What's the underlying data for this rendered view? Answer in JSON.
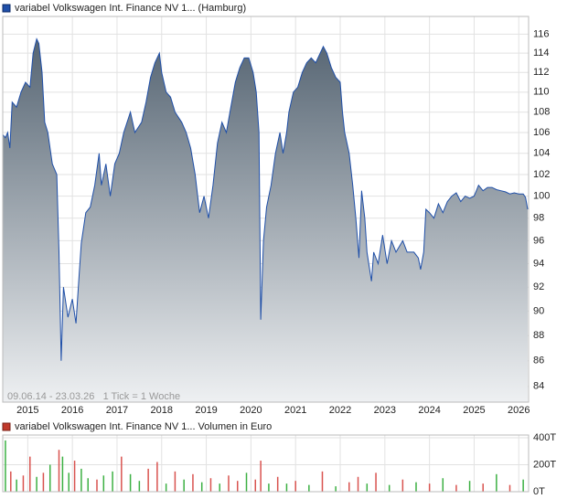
{
  "chart_data": [
    {
      "type": "area",
      "log_scale": true,
      "grid": true,
      "annotation": "09.06.14 - 23.03.26   1 Tick = 1 Woche",
      "xlim": [
        2014.44,
        2026.22
      ],
      "xticks": [
        2015,
        2016,
        2017,
        2018,
        2019,
        2020,
        2021,
        2022,
        2023,
        2024,
        2025,
        2026
      ],
      "ylim": [
        82.8,
        117.9
      ],
      "yticks": [
        84,
        86,
        88,
        90,
        92,
        94,
        96,
        98,
        100,
        102,
        104,
        106,
        108,
        110,
        112,
        114,
        116
      ],
      "fill_top": "#566573",
      "fill_bottom": "#eef0f2",
      "x": [
        2014.44,
        2014.5,
        2014.55,
        2014.6,
        2014.65,
        2014.75,
        2014.85,
        2014.95,
        2015.05,
        2015.12,
        2015.2,
        2015.25,
        2015.32,
        2015.38,
        2015.45,
        2015.55,
        2015.65,
        2015.7,
        2015.75,
        2015.8,
        2015.9,
        2016.0,
        2016.08,
        2016.15,
        2016.2,
        2016.3,
        2016.4,
        2016.5,
        2016.6,
        2016.65,
        2016.75,
        2016.85,
        2016.95,
        2017.05,
        2017.15,
        2017.3,
        2017.4,
        2017.55,
        2017.65,
        2017.75,
        2017.85,
        2017.95,
        2018.0,
        2018.1,
        2018.2,
        2018.3,
        2018.45,
        2018.55,
        2018.65,
        2018.75,
        2018.85,
        2018.95,
        2019.05,
        2019.15,
        2019.25,
        2019.35,
        2019.45,
        2019.55,
        2019.65,
        2019.75,
        2019.85,
        2019.95,
        2020.05,
        2020.12,
        2020.18,
        2020.2,
        2020.22,
        2020.28,
        2020.35,
        2020.45,
        2020.55,
        2020.65,
        2020.72,
        2020.8,
        2020.85,
        2020.95,
        2021.05,
        2021.15,
        2021.25,
        2021.35,
        2021.45,
        2021.55,
        2021.62,
        2021.7,
        2021.8,
        2021.9,
        2022.0,
        2022.05,
        2022.1,
        2022.2,
        2022.28,
        2022.35,
        2022.42,
        2022.48,
        2022.55,
        2022.6,
        2022.7,
        2022.75,
        2022.85,
        2022.95,
        2023.05,
        2023.15,
        2023.25,
        2023.4,
        2023.5,
        2023.65,
        2023.75,
        2023.8,
        2023.87,
        2023.92,
        2024.0,
        2024.1,
        2024.2,
        2024.3,
        2024.4,
        2024.5,
        2024.6,
        2024.7,
        2024.8,
        2024.9,
        2025.0,
        2025.05,
        2025.1,
        2025.2,
        2025.3,
        2025.4,
        2025.5,
        2025.6,
        2025.7,
        2025.8,
        2025.9,
        2026.0,
        2026.1,
        2026.15,
        2026.2
      ],
      "series": [
        {
          "name": "variabel Volkswagen Int. Finance NV 1... (Hamburg)",
          "color": "#1f4fa8",
          "values": [
            105.8,
            105.5,
            106,
            104.5,
            109,
            108.5,
            110,
            111,
            110.5,
            114,
            115.5,
            115,
            112,
            107,
            106,
            103,
            102,
            95,
            86,
            92,
            89.5,
            91,
            89,
            93,
            95.8,
            98.5,
            99,
            101,
            104,
            101,
            103,
            100,
            103,
            104,
            106,
            108,
            106,
            107,
            109,
            111.5,
            113,
            114,
            112,
            110,
            109.5,
            108,
            107,
            106,
            104.5,
            102,
            98.5,
            100,
            98,
            101,
            105,
            107,
            106,
            108.5,
            111,
            112.5,
            113.5,
            113.5,
            112,
            110,
            106,
            97,
            89.3,
            96,
            99,
            101,
            104,
            106,
            104,
            106,
            108,
            110,
            110.5,
            112,
            113,
            113.5,
            113,
            114,
            114.7,
            114,
            112.5,
            111.5,
            111,
            108,
            106,
            104,
            101,
            98,
            94.5,
            100.5,
            98,
            95,
            92.5,
            95,
            94,
            96.5,
            94,
            96,
            95,
            96,
            95,
            95,
            94.5,
            93.5,
            95,
            98.8,
            98.5,
            98,
            99.3,
            98.5,
            99.5,
            100,
            100.3,
            99.5,
            100,
            99.8,
            100,
            100.5,
            101,
            100.5,
            100.8,
            100.8,
            100.6,
            100.5,
            100.4,
            100.2,
            100.3,
            100.2,
            100.2,
            99.9,
            98.8
          ]
        }
      ]
    },
    {
      "type": "bar",
      "grid": true,
      "xlim": [
        2014.44,
        2026.22
      ],
      "xticks": [
        2015,
        2016,
        2017,
        2018,
        2019,
        2020,
        2021,
        2022,
        2023,
        2024,
        2025,
        2026
      ],
      "ylim": [
        0,
        420000
      ],
      "yticks": [
        {
          "value": 0,
          "label": "0T"
        },
        {
          "value": 200000,
          "label": "200T"
        },
        {
          "value": 400000,
          "label": "400T"
        }
      ],
      "x": [
        2014.5,
        2014.62,
        2014.75,
        2014.9,
        2015.05,
        2015.2,
        2015.35,
        2015.5,
        2015.7,
        2015.78,
        2015.92,
        2016.05,
        2016.2,
        2016.35,
        2016.55,
        2016.7,
        2016.9,
        2017.1,
        2017.3,
        2017.5,
        2017.7,
        2017.9,
        2018.1,
        2018.3,
        2018.5,
        2018.7,
        2018.9,
        2019.1,
        2019.3,
        2019.5,
        2019.7,
        2019.9,
        2020.1,
        2020.22,
        2020.4,
        2020.6,
        2020.8,
        2021.0,
        2021.3,
        2021.6,
        2021.9,
        2022.2,
        2022.4,
        2022.6,
        2022.8,
        2023.1,
        2023.4,
        2023.7,
        2024.0,
        2024.3,
        2024.6,
        2024.9,
        2025.2,
        2025.5,
        2025.8,
        2026.1
      ],
      "bar_colors": [
        "#3cb043",
        "#d9534f",
        "#3cb043",
        "#d9534f",
        "#d9534f",
        "#3cb043",
        "#d9534f",
        "#3cb043",
        "#d9534f",
        "#3cb043",
        "#3cb043",
        "#d9534f",
        "#3cb043",
        "#3cb043",
        "#d9534f",
        "#3cb043",
        "#3cb043",
        "#d9534f",
        "#3cb043",
        "#3cb043",
        "#d9534f",
        "#d9534f",
        "#3cb043",
        "#d9534f",
        "#3cb043",
        "#d9534f",
        "#3cb043",
        "#d9534f",
        "#3cb043",
        "#d9534f",
        "#d9534f",
        "#3cb043",
        "#d9534f",
        "#d9534f",
        "#3cb043",
        "#d9534f",
        "#3cb043",
        "#d9534f",
        "#3cb043",
        "#d9534f",
        "#3cb043",
        "#d9534f",
        "#d9534f",
        "#3cb043",
        "#d9534f",
        "#3cb043",
        "#d9534f",
        "#3cb043",
        "#d9534f",
        "#3cb043",
        "#d9534f",
        "#3cb043",
        "#d9534f",
        "#3cb043",
        "#d9534f",
        "#3cb043"
      ],
      "series": [
        {
          "name": "variabel Volkswagen Int. Finance NV 1... Volumen in Euro",
          "color": "#c0392b",
          "values": [
            380000,
            150000,
            90000,
            120000,
            260000,
            110000,
            140000,
            200000,
            310000,
            260000,
            140000,
            230000,
            170000,
            100000,
            90000,
            120000,
            150000,
            260000,
            130000,
            80000,
            170000,
            220000,
            60000,
            150000,
            90000,
            130000,
            70000,
            100000,
            60000,
            120000,
            80000,
            140000,
            90000,
            230000,
            60000,
            110000,
            60000,
            80000,
            50000,
            150000,
            40000,
            70000,
            110000,
            60000,
            140000,
            50000,
            90000,
            70000,
            60000,
            100000,
            50000,
            80000,
            60000,
            130000,
            50000,
            90000
          ]
        }
      ]
    }
  ]
}
